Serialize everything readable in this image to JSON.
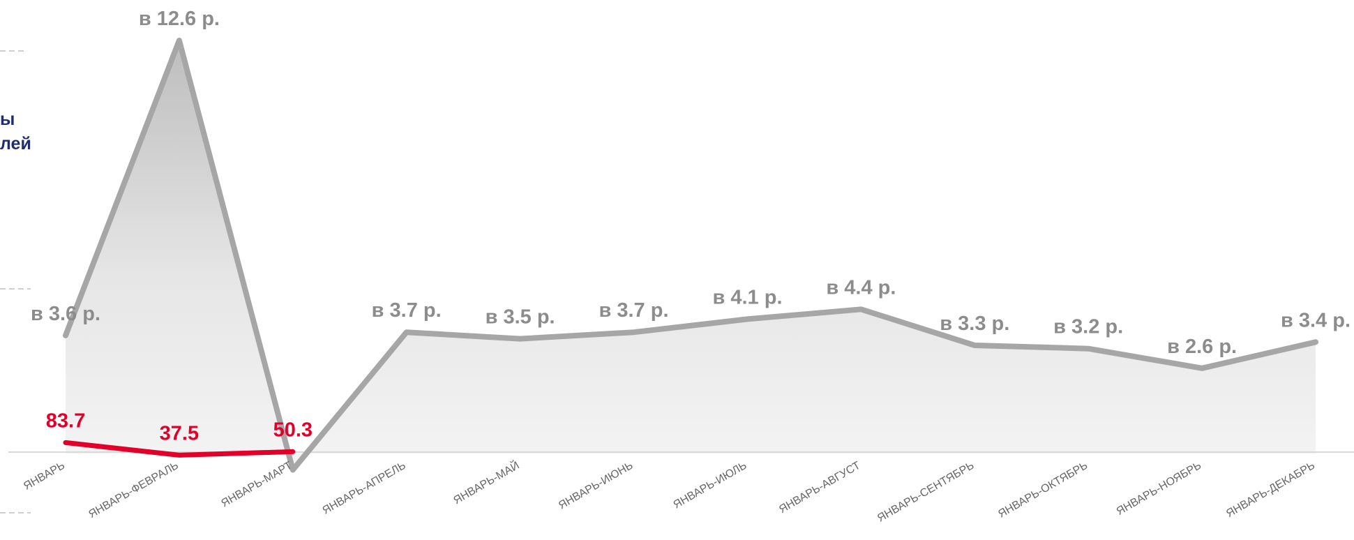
{
  "side_label": [
    "ы",
    "лей"
  ],
  "chart_data": {
    "type": "line",
    "categories": [
      "ЯНВАРЬ",
      "ЯНВАРЬ-ФЕВРАЛЬ",
      "ЯНВАРЬ-МАРТ",
      "ЯНВАРЬ-АПРЕЛЬ",
      "ЯНВАРЬ-МАЙ",
      "ЯНВАРЬ-ИЮНЬ",
      "ЯНВАРЬ-ИЮЛЬ",
      "ЯНВАРЬ-АВГУСТ",
      "ЯНВАРЬ-СЕНТЯБРЬ",
      "ЯНВАРЬ-ОКТЯБРЬ",
      "ЯНВАРЬ-НОЯБРЬ",
      "ЯНВАРЬ-ДЕКАБРЬ"
    ],
    "series": [
      {
        "values": [
          3.6,
          12.6,
          -0.5,
          3.7,
          3.5,
          3.7,
          4.1,
          4.4,
          3.3,
          3.2,
          2.6,
          3.4
        ],
        "labels": [
          "в 3.6 р.",
          "в 12.6 р.",
          "",
          "в 3.7 р.",
          "в 3.5 р.",
          "в 3.7 р.",
          "в 4.1 р.",
          "в 4.4 р.",
          "в 3.3 р.",
          "в 3.2 р.",
          "в 2.6 р.",
          "в 3.4 р."
        ],
        "color": "#a6a6a6",
        "area": true
      },
      {
        "values": [
          83.7,
          37.5,
          50.3,
          null,
          null,
          null,
          null,
          null,
          null,
          null,
          null,
          null
        ],
        "labels": [
          "83.7",
          "37.5",
          "50.3",
          "",
          "",
          "",
          "",
          "",
          "",
          "",
          "",
          ""
        ],
        "color": "#e2002b"
      }
    ],
    "ylim": [
      0,
      13.5
    ],
    "grid": false,
    "legend": "none"
  }
}
